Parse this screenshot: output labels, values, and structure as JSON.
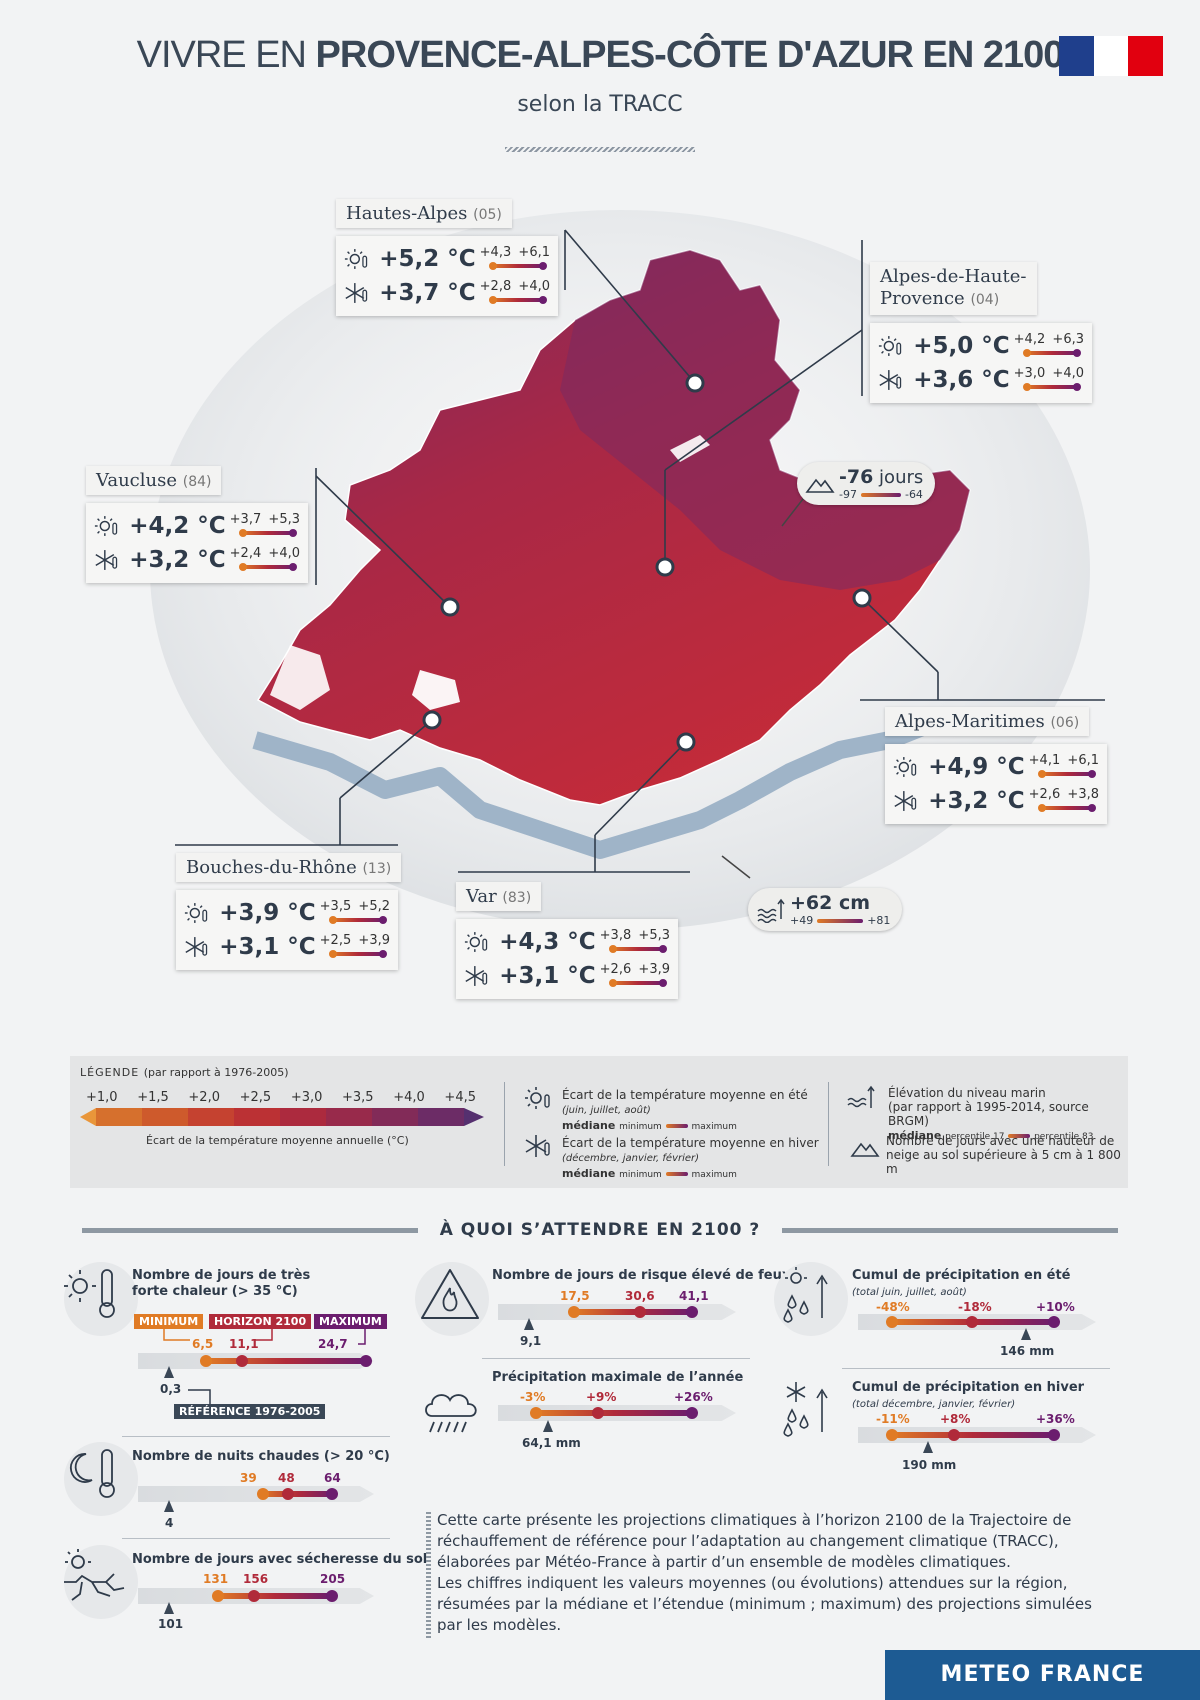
{
  "header": {
    "title_prefix": "VIVRE EN ",
    "title_region": "PROVENCE-ALPES-CÔTE D'AZUR EN 2100",
    "subtitle": "selon la TRACC"
  },
  "colors": {
    "summer_min": "#e07b25",
    "median": "#b02a3a",
    "maximum": "#6b1d6e",
    "map_red": "#c02a3c",
    "map_purple": "#8a2a5c",
    "meteo_blue": "#1d5b93"
  },
  "departments": [
    {
      "name": "Hautes-Alpes",
      "code": "(05)",
      "summer": "+5,2 °C",
      "summer_min": "+4,3",
      "summer_max": "+6,1",
      "winter": "+3,7 °C",
      "winter_min": "+2,8",
      "winter_max": "+4,0"
    },
    {
      "name_line1": "Alpes-de-Haute-",
      "name_line2": "Provence",
      "code": "(04)",
      "summer": "+5,0 °C",
      "summer_min": "+4,2",
      "summer_max": "+6,3",
      "winter": "+3,6 °C",
      "winter_min": "+3,0",
      "winter_max": "+4,0"
    },
    {
      "name": "Vaucluse",
      "code": "(84)",
      "summer": "+4,2 °C",
      "summer_min": "+3,7",
      "summer_max": "+5,3",
      "winter": "+3,2 °C",
      "winter_min": "+2,4",
      "winter_max": "+4,0"
    },
    {
      "name": "Alpes-Maritimes",
      "code": "(06)",
      "summer": "+4,9 °C",
      "summer_min": "+4,1",
      "summer_max": "+6,1",
      "winter": "+3,2 °C",
      "winter_min": "+2,6",
      "winter_max": "+3,8"
    },
    {
      "name": "Bouches-du-Rhône",
      "code": "(13)",
      "summer": "+3,9 °C",
      "summer_min": "+3,5",
      "summer_max": "+5,2",
      "winter": "+3,1 °C",
      "winter_min": "+2,5",
      "winter_max": "+3,9"
    },
    {
      "name": "Var",
      "code": "(83)",
      "summer": "+4,3 °C",
      "summer_min": "+3,8",
      "summer_max": "+5,3",
      "winter": "+3,1 °C",
      "winter_min": "+2,6",
      "winter_max": "+3,9"
    }
  ],
  "snow": {
    "value": "-76",
    "unit": " jours",
    "min": "-97",
    "max": "-64"
  },
  "sea": {
    "value": "+62 cm",
    "min": "+49",
    "max": "+81"
  },
  "legend": {
    "title": "LÉGENDE",
    "title_note": "(par rapport à 1976-2005)",
    "ticks": [
      "+1,0",
      "+1,5",
      "+2,0",
      "+2,5",
      "+3,0",
      "+3,5",
      "+4,0",
      "+4,5"
    ],
    "scale_caption": "Écart de la température moyenne annuelle (°C)",
    "summer_title": "Écart de la température moyenne en été",
    "summer_months": "(juin, juillet, août)",
    "winter_title": "Écart de la température moyenne en hiver",
    "winter_months": "(décembre, janvier, février)",
    "median": "médiane",
    "minimum": "minimum",
    "maximum": "maximum",
    "sea_title": "Élévation du niveau marin",
    "sea_note": "(par rapport à 1995-2014, source BRGM)",
    "p17": "percentile 17",
    "p83": "percentile 83",
    "snow_line1": "Nombre de jours avec une hauteur de",
    "snow_line2": "neige au sol supérieure à 5 cm à 1 800 m"
  },
  "section": {
    "title": "À QUOI S’ATTENDRE EN 2100 ?"
  },
  "indicators": {
    "heat": {
      "title_line1": "Nombre de jours de très",
      "title_line2": "forte chaleur (> 35 °C)",
      "tag_min": "MINIMUM",
      "tag_med": "HORIZON 2100",
      "tag_max": "MAXIMUM",
      "min": "6,5",
      "med": "11,1",
      "max": "24,7",
      "ref": "0,3",
      "ref_tag": "RÉFÉRENCE 1976-2005"
    },
    "nights": {
      "title": "Nombre de nuits chaudes (> 20 °C)",
      "min": "39",
      "med": "48",
      "max": "64",
      "ref": "4"
    },
    "drought": {
      "title": "Nombre de jours avec sécheresse du sol",
      "min": "131",
      "med": "156",
      "max": "205",
      "ref": "101"
    },
    "fire": {
      "title": "Nombre de jours de risque élevé de feux",
      "min": "17,5",
      "med": "30,6",
      "max": "41,1",
      "ref": "9,1"
    },
    "maxprecip": {
      "title": "Précipitation maximale de l’année",
      "min": "-3%",
      "med": "+9%",
      "max": "+26%",
      "ref": "64,1 mm"
    },
    "summer_precip": {
      "title": "Cumul de précipitation en été",
      "note": "(total juin, juillet, août)",
      "min": "-48%",
      "med": "-18%",
      "max": "+10%",
      "ref": "146 mm"
    },
    "winter_precip": {
      "title": "Cumul de précipitation en hiver",
      "note": "(total décembre, janvier, février)",
      "min": "-11%",
      "med": "+8%",
      "max": "+36%",
      "ref": "190 mm"
    }
  },
  "paragraph": {
    "line1": "Cette carte présente les projections climatiques à l’horizon 2100 de la Trajectoire de",
    "line2": "réchauffement de référence pour l’adaptation au changement climatique (TRACC),",
    "line3": "élaborées par Météo-France à partir d’un ensemble de modèles climatiques.",
    "line4": "Les chiffres indiquent les valeurs moyennes (ou évolutions) attendues sur la région,",
    "line5": "résumées par la médiane et l’étendue (minimum ; maximum) des projections simulées",
    "line6": "par les modèles."
  },
  "footer": {
    "brand": "METEO FRANCE"
  }
}
